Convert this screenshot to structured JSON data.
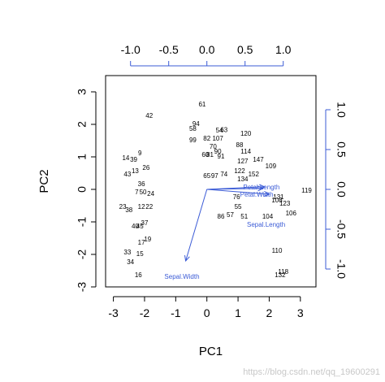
{
  "chart_data": {
    "type": "scatter",
    "subtype": "biplot",
    "xlabel": "PC1",
    "ylabel": "PC2",
    "xlim": [
      -3.25,
      3.5
    ],
    "ylim": [
      -3.0,
      3.5
    ],
    "x_ticks": [
      -3,
      -2,
      -1,
      0,
      1,
      2,
      3
    ],
    "y_ticks": [
      -3,
      -2,
      -1,
      0,
      1,
      2,
      3
    ],
    "top_ticks": [
      -1.0,
      -0.5,
      0.0,
      0.5,
      1.0
    ],
    "top_tick_labels": [
      "-1.0",
      "-0.5",
      "0.0",
      "0.5",
      "1.0"
    ],
    "right_ticks": [
      -1.0,
      -0.5,
      0.0,
      0.5,
      1.0
    ],
    "right_tick_labels": [
      "-1.0",
      "-0.5",
      "0.0",
      "0.5",
      "1.0"
    ],
    "x_tick_labels": [
      "-3",
      "-2",
      "-1",
      "0",
      "1",
      "2",
      "3"
    ],
    "y_tick_labels": [
      "-3",
      "-2",
      "-1",
      "0",
      "1",
      "2",
      "3"
    ],
    "grid": false,
    "secondary_axes": "top and right, blue",
    "arrow_color": "#3b5bd6",
    "variables": [
      {
        "name": "Sepal.Width",
        "x": -0.68,
        "y": -2.2
      },
      {
        "name": "Sepal.Length",
        "x": 2.0,
        "y": -0.15
      },
      {
        "name": "Petal.Length",
        "x": 1.85,
        "y": 0.08
      },
      {
        "name": "Petal.Width",
        "x": 1.8,
        "y": 0.03
      }
    ],
    "variable_labels": [
      {
        "text": "Sepal.Width",
        "x": -0.8,
        "y": -2.75
      },
      {
        "text": "Sepal.Length",
        "x": 1.9,
        "y": -1.15
      },
      {
        "text": "Petal.Length",
        "x": 1.75,
        "y": 0.0
      },
      {
        "text": "Petal.Width",
        "x": 1.6,
        "y": -0.22
      }
    ],
    "points": [
      {
        "label": "42",
        "x": -1.85,
        "y": 2.25
      },
      {
        "label": "61",
        "x": -0.15,
        "y": 2.6
      },
      {
        "label": "94",
        "x": -0.35,
        "y": 2.0
      },
      {
        "label": "58",
        "x": -0.45,
        "y": 1.85
      },
      {
        "label": "99",
        "x": -0.45,
        "y": 1.5
      },
      {
        "label": "54",
        "x": 0.4,
        "y": 1.8
      },
      {
        "label": "63",
        "x": 0.55,
        "y": 1.82
      },
      {
        "label": "120",
        "x": 1.25,
        "y": 1.7
      },
      {
        "label": "82",
        "x": 0.0,
        "y": 1.55
      },
      {
        "label": "107",
        "x": 0.35,
        "y": 1.55
      },
      {
        "label": "88",
        "x": 1.05,
        "y": 1.35
      },
      {
        "label": "70",
        "x": 0.2,
        "y": 1.3
      },
      {
        "label": "90",
        "x": 0.35,
        "y": 1.15
      },
      {
        "label": "114",
        "x": 1.25,
        "y": 1.15
      },
      {
        "label": "60",
        "x": -0.05,
        "y": 1.05
      },
      {
        "label": "81",
        "x": 0.1,
        "y": 1.05
      },
      {
        "label": "91",
        "x": 0.45,
        "y": 1.0
      },
      {
        "label": "147",
        "x": 1.65,
        "y": 0.9
      },
      {
        "label": "127",
        "x": 1.15,
        "y": 0.85
      },
      {
        "label": "109",
        "x": 2.05,
        "y": 0.7
      },
      {
        "label": "65",
        "x": 0.0,
        "y": 0.4
      },
      {
        "label": "97",
        "x": 0.25,
        "y": 0.4
      },
      {
        "label": "74",
        "x": 0.55,
        "y": 0.45
      },
      {
        "label": "122",
        "x": 1.05,
        "y": 0.55
      },
      {
        "label": "134",
        "x": 1.15,
        "y": 0.3
      },
      {
        "label": "152",
        "x": 1.5,
        "y": 0.45
      },
      {
        "label": "123",
        "x": 2.5,
        "y": -0.45
      },
      {
        "label": "119",
        "x": 3.2,
        "y": -0.05
      },
      {
        "label": "108",
        "x": 2.25,
        "y": -0.35
      },
      {
        "label": "131",
        "x": 2.3,
        "y": -0.25
      },
      {
        "label": "106",
        "x": 2.7,
        "y": -0.75
      },
      {
        "label": "76",
        "x": 0.95,
        "y": -0.25
      },
      {
        "label": "55",
        "x": 1.0,
        "y": -0.55
      },
      {
        "label": "86",
        "x": 0.45,
        "y": -0.85
      },
      {
        "label": "57",
        "x": 0.75,
        "y": -0.8
      },
      {
        "label": "51",
        "x": 1.2,
        "y": -0.85
      },
      {
        "label": "104",
        "x": 1.95,
        "y": -0.85
      },
      {
        "label": "110",
        "x": 2.25,
        "y": -1.9
      },
      {
        "label": "118",
        "x": 2.45,
        "y": -2.55
      },
      {
        "label": "132",
        "x": 2.35,
        "y": -2.65
      },
      {
        "label": "9",
        "x": -2.15,
        "y": 1.1
      },
      {
        "label": "14",
        "x": -2.6,
        "y": 0.95
      },
      {
        "label": "39",
        "x": -2.35,
        "y": 0.9
      },
      {
        "label": "26",
        "x": -1.95,
        "y": 0.65
      },
      {
        "label": "43",
        "x": -2.55,
        "y": 0.45
      },
      {
        "label": "13",
        "x": -2.3,
        "y": 0.55
      },
      {
        "label": "36",
        "x": -2.1,
        "y": 0.15
      },
      {
        "label": "7",
        "x": -2.25,
        "y": -0.1
      },
      {
        "label": "50",
        "x": -2.05,
        "y": -0.1
      },
      {
        "label": "24",
        "x": -1.8,
        "y": -0.15
      },
      {
        "label": "23",
        "x": -2.7,
        "y": -0.55
      },
      {
        "label": "38",
        "x": -2.5,
        "y": -0.65
      },
      {
        "label": "12",
        "x": -2.1,
        "y": -0.55
      },
      {
        "label": "22",
        "x": -1.85,
        "y": -0.55
      },
      {
        "label": "37",
        "x": -2.0,
        "y": -1.05
      },
      {
        "label": "45",
        "x": -2.15,
        "y": -1.15
      },
      {
        "label": "40",
        "x": -2.3,
        "y": -1.15
      },
      {
        "label": "19",
        "x": -1.9,
        "y": -1.55
      },
      {
        "label": "17",
        "x": -2.1,
        "y": -1.65
      },
      {
        "label": "33",
        "x": -2.55,
        "y": -1.95
      },
      {
        "label": "15",
        "x": -2.15,
        "y": -2.0
      },
      {
        "label": "34",
        "x": -2.45,
        "y": -2.25
      },
      {
        "label": "16",
        "x": -2.2,
        "y": -2.65
      }
    ]
  },
  "watermark": "https://blog.csdn.net/qq_19600291"
}
